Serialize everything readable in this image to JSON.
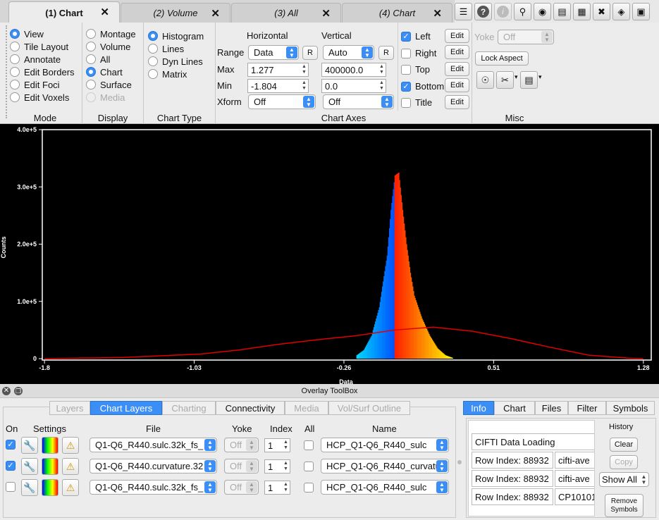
{
  "tabs": [
    {
      "label": "(1) Chart",
      "active": true
    },
    {
      "label": "(2) Volume",
      "active": false
    },
    {
      "label": "(3) All",
      "active": false
    },
    {
      "label": "(4) Chart",
      "active": false
    }
  ],
  "toolbar_icons": [
    "speech-bubble-icon",
    "help-icon",
    "info-icon",
    "pin-icon",
    "movie-camera-icon",
    "document-icon",
    "clapperboard-icon",
    "tools-icon",
    "layers-icon",
    "toolbox-icon"
  ],
  "mode": {
    "title": "Mode",
    "options": [
      {
        "label": "View",
        "selected": true
      },
      {
        "label": "Tile Layout",
        "selected": false
      },
      {
        "label": "Annotate",
        "selected": false
      },
      {
        "label": "Edit Borders",
        "selected": false
      },
      {
        "label": "Edit Foci",
        "selected": false
      },
      {
        "label": "Edit Voxels",
        "selected": false
      }
    ]
  },
  "display": {
    "title": "Display",
    "options": [
      {
        "label": "Montage",
        "selected": false,
        "enabled": true
      },
      {
        "label": "Volume",
        "selected": false,
        "enabled": true
      },
      {
        "label": "All",
        "selected": false,
        "enabled": true
      },
      {
        "label": "Chart",
        "selected": true,
        "enabled": true
      },
      {
        "label": "Surface",
        "selected": false,
        "enabled": true
      },
      {
        "label": "Media",
        "selected": false,
        "enabled": false
      }
    ]
  },
  "chart_type": {
    "title": "Chart Type",
    "options": [
      {
        "label": "Histogram",
        "selected": true
      },
      {
        "label": "Lines",
        "selected": false
      },
      {
        "label": "Dyn Lines",
        "selected": false
      },
      {
        "label": "Matrix",
        "selected": false
      }
    ]
  },
  "chart_axes": {
    "title": "Chart Axes",
    "horizontal_label": "Horizontal",
    "vertical_label": "Vertical",
    "range_label": "Range",
    "max_label": "Max",
    "min_label": "Min",
    "xform_label": "Xform",
    "reset_label": "R",
    "h_range": "Data",
    "v_range": "Auto",
    "h_max": "1.277",
    "v_max": "400000.0",
    "h_min": "-1.804",
    "v_min": "0.0",
    "h_xform": "Off",
    "v_xform": "Off",
    "edit_label": "Edit",
    "sides": [
      {
        "label": "Left",
        "checked": true
      },
      {
        "label": "Right",
        "checked": false
      },
      {
        "label": "Top",
        "checked": false
      },
      {
        "label": "Bottom",
        "checked": true
      },
      {
        "label": "Title",
        "checked": false
      }
    ]
  },
  "misc": {
    "title": "Misc",
    "yoke_label": "Yoke",
    "yoke_value": "Off",
    "lock_aspect": "Lock Aspect"
  },
  "chart_data": {
    "type": "bar",
    "xlabel": "Data",
    "ylabel": "Counts",
    "xlim": [
      -1.804,
      1.277
    ],
    "ylim": [
      0,
      400000
    ],
    "x_ticks": [
      "-1.8",
      "-1.03",
      "-0.26",
      "0.51",
      "1.28"
    ],
    "x_tick_values": [
      -1.8,
      -1.03,
      -0.26,
      0.51,
      1.28
    ],
    "y_ticks": [
      "0",
      "1.0e+5",
      "2.0e+5",
      "3.0e+5",
      "4.0e+5"
    ],
    "y_tick_values": [
      0,
      100000,
      200000,
      300000,
      400000
    ],
    "histogram": {
      "x": [
        -0.2,
        -0.16,
        -0.12,
        -0.08,
        -0.04,
        -0.02,
        0.0,
        0.02,
        0.04,
        0.06,
        0.08,
        0.1,
        0.14,
        0.18,
        0.22,
        0.26,
        0.3
      ],
      "y": [
        5000,
        15000,
        40000,
        90000,
        180000,
        260000,
        320000,
        325000,
        260000,
        200000,
        150000,
        110000,
        70000,
        40000,
        18000,
        6000,
        1000
      ]
    },
    "curve": {
      "x": [
        -1.8,
        -1.4,
        -1.0,
        -0.8,
        -0.6,
        -0.4,
        -0.2,
        0.0,
        0.2,
        0.4,
        0.6,
        0.8,
        1.0,
        1.2,
        1.28
      ],
      "y": [
        0,
        2000,
        8000,
        15000,
        25000,
        33000,
        40000,
        50000,
        55000,
        48000,
        35000,
        20000,
        6000,
        1000,
        0
      ]
    }
  },
  "overlay": {
    "title": "Overlay ToolBox",
    "tabs": [
      {
        "label": "Layers",
        "state": "disabled"
      },
      {
        "label": "Chart Layers",
        "state": "active"
      },
      {
        "label": "Charting",
        "state": "disabled"
      },
      {
        "label": "Connectivity",
        "state": "enabled"
      },
      {
        "label": "Media",
        "state": "disabled"
      },
      {
        "label": "Vol/Surf Outline",
        "state": "disabled"
      }
    ],
    "headers": {
      "on": "On",
      "settings": "Settings",
      "file": "File",
      "yoke": "Yoke",
      "index": "Index",
      "all": "All",
      "name": "Name"
    },
    "rows": [
      {
        "on": true,
        "file": "Q1-Q6_R440.sulc.32k_fs_",
        "yoke": "Off",
        "index": "1",
        "name": "HCP_Q1-Q6_R440_sulc"
      },
      {
        "on": true,
        "file": "Q1-Q6_R440.curvature.32",
        "yoke": "Off",
        "index": "1",
        "name": "HCP_Q1-Q6_R440_curvatu"
      },
      {
        "on": false,
        "file": "Q1-Q6_R440.sulc.32k_fs_",
        "yoke": "Off",
        "index": "1",
        "name": "HCP_Q1-Q6_R440_sulc"
      }
    ]
  },
  "info": {
    "tabs": [
      {
        "label": "Info",
        "active": true
      },
      {
        "label": "Chart",
        "active": false
      },
      {
        "label": "Files",
        "active": false
      },
      {
        "label": "Filter",
        "active": false
      },
      {
        "label": "Symbols",
        "active": false
      }
    ],
    "title_row": "CIFTI Data Loading",
    "rows": [
      {
        "a": "Row Index: 88932",
        "b": "cifti-ave"
      },
      {
        "a": "Row Index: 88932",
        "b": "cifti-ave"
      },
      {
        "a": "Row Index: 88932",
        "b": "CP10101"
      }
    ],
    "history_label": "History",
    "clear_label": "Clear",
    "copy_label": "Copy",
    "show_label": "Show All",
    "remove_label_1": "Remove",
    "remove_label_2": "Symbols"
  }
}
